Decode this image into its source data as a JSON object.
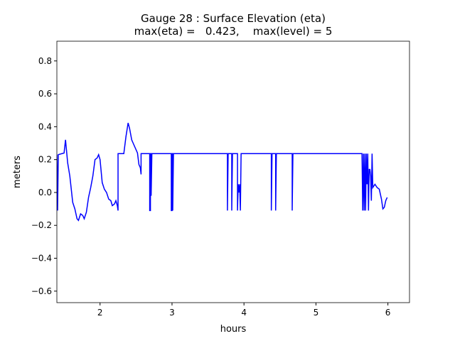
{
  "chart_data": {
    "type": "line",
    "title": "Gauge 28 : Surface Elevation (eta)",
    "subtitle": "max(eta) =   0.423,    max(level) = 5",
    "x_label": "hours",
    "y_label": "meters",
    "xlim": [
      1.4,
      6.3
    ],
    "ylim": [
      -0.67,
      0.92
    ],
    "xticks": [
      2,
      3,
      4,
      5,
      6
    ],
    "yticks": [
      {
        "value": -0.6,
        "label": "−0.6"
      },
      {
        "value": -0.4,
        "label": "−0.4"
      },
      {
        "value": -0.2,
        "label": "−0.2"
      },
      {
        "value": 0,
        "label": "0.0"
      },
      0.2,
      0.4,
      0.6,
      0.8
    ],
    "series": [
      {
        "color": "#0000ff",
        "x": [
          1.4,
          1.41,
          1.42,
          1.5,
          1.52,
          1.55,
          1.58,
          1.62,
          1.65,
          1.68,
          1.7,
          1.73,
          1.76,
          1.78,
          1.81,
          1.84,
          1.87,
          1.9,
          1.93,
          1.96,
          1.98,
          2.0,
          2.03,
          2.06,
          2.09,
          2.12,
          2.15,
          2.17,
          2.2,
          2.22,
          2.24,
          2.25,
          2.25,
          2.33,
          2.36,
          2.39,
          2.41,
          2.44,
          2.48,
          2.52,
          2.54,
          2.56,
          2.57,
          2.57,
          2.69,
          2.69,
          2.7,
          2.7,
          2.71,
          2.71,
          2.72,
          2.99,
          2.99,
          3.0,
          3.0,
          3.01,
          3.01,
          3.02,
          3.77,
          3.77,
          3.78,
          3.83,
          3.83,
          3.84,
          3.91,
          3.91,
          3.92,
          3.93,
          3.94,
          3.95,
          3.96,
          4.38,
          4.38,
          4.39,
          4.44,
          4.44,
          4.45,
          4.67,
          4.67,
          4.68,
          5.64,
          5.65,
          5.66,
          5.67,
          5.68,
          5.69,
          5.7,
          5.71,
          5.72,
          5.73,
          5.74,
          5.75,
          5.76,
          5.77,
          5.78,
          5.79,
          5.82,
          5.85,
          5.88,
          5.91,
          5.93,
          5.95,
          5.97,
          5.99
        ],
        "values": [
          0.23,
          -0.11,
          0.23,
          0.24,
          0.32,
          0.18,
          0.1,
          -0.06,
          -0.1,
          -0.16,
          -0.17,
          -0.13,
          -0.14,
          -0.16,
          -0.12,
          -0.03,
          0.03,
          0.1,
          0.2,
          0.21,
          0.23,
          0.2,
          0.06,
          0.02,
          0.0,
          -0.04,
          -0.05,
          -0.08,
          -0.07,
          -0.05,
          -0.08,
          -0.11,
          0.236,
          0.236,
          0.34,
          0.423,
          0.39,
          0.32,
          0.28,
          0.24,
          0.17,
          0.15,
          0.11,
          0.236,
          0.236,
          -0.11,
          -0.11,
          0.236,
          0.236,
          -0.02,
          0.236,
          0.236,
          -0.11,
          -0.11,
          0.236,
          0.236,
          -0.11,
          0.236,
          0.236,
          -0.11,
          0.236,
          0.236,
          -0.11,
          0.236,
          0.236,
          -0.11,
          0.05,
          0.0,
          0.05,
          -0.11,
          0.236,
          0.236,
          -0.11,
          0.236,
          0.236,
          -0.11,
          0.236,
          0.236,
          -0.11,
          0.236,
          0.236,
          -0.11,
          0.236,
          -0.11,
          0.236,
          -0.11,
          0.236,
          0.05,
          0.236,
          -0.11,
          0.14,
          0.14,
          0.1,
          -0.05,
          0.236,
          0.03,
          0.05,
          0.03,
          0.02,
          -0.04,
          -0.1,
          -0.09,
          -0.05,
          -0.03
        ]
      }
    ]
  }
}
